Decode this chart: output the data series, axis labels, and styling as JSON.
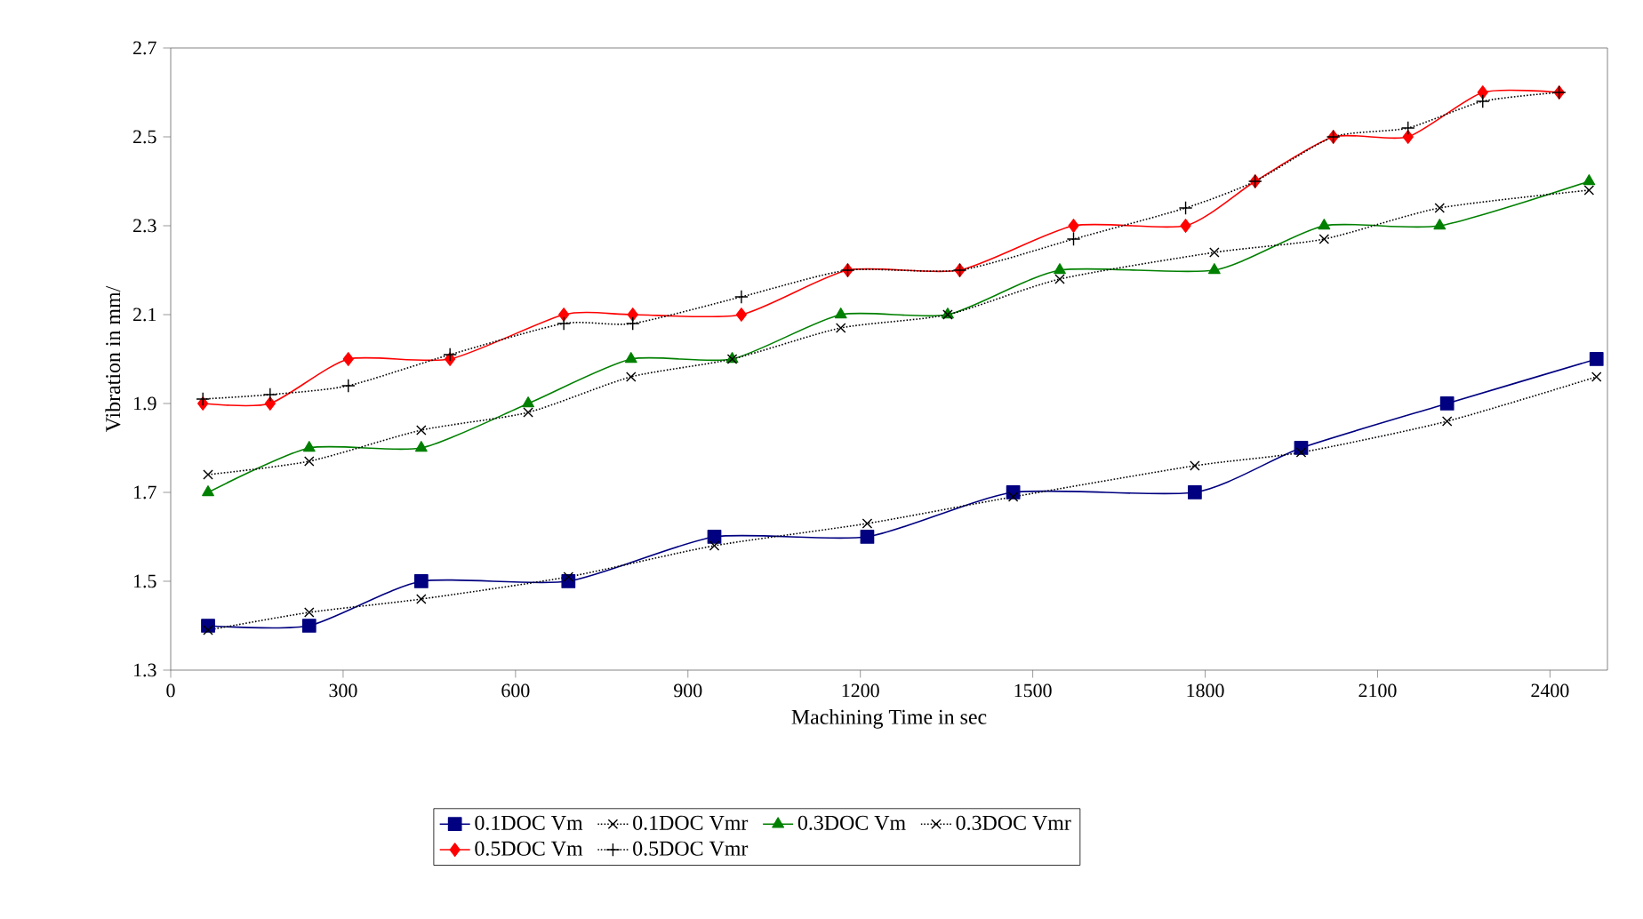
{
  "chart_data": {
    "type": "line",
    "xlabel": "Machining Time in sec",
    "ylabel": "Vibration in mm/",
    "xlim": [
      0,
      2500
    ],
    "ylim": [
      1.3,
      2.7
    ],
    "xticks": [
      0,
      300,
      600,
      900,
      1200,
      1500,
      1800,
      2100,
      2400
    ],
    "yticks": [
      1.3,
      1.5,
      1.7,
      1.9,
      2.1,
      2.3,
      2.5,
      2.7
    ],
    "grid": false,
    "legend": "bottom",
    "line_style": "solid",
    "series": [
      {
        "name": "0.1DOC Vm",
        "color": "#000080",
        "marker": "square",
        "x": [
          65,
          241,
          436,
          692,
          946,
          1212,
          1466,
          1782,
          1967,
          2221,
          2481
        ],
        "values": [
          1.4,
          1.4,
          1.5,
          1.5,
          1.6,
          1.6,
          1.7,
          1.7,
          1.8,
          1.9,
          2.0
        ]
      },
      {
        "name": "0.1DOC Vmr",
        "color": "#000000",
        "marker": "cross",
        "line_style": "dotted",
        "x": [
          65,
          241,
          436,
          692,
          946,
          1212,
          1466,
          1782,
          1967,
          2221,
          2481
        ],
        "values": [
          1.39,
          1.43,
          1.46,
          1.51,
          1.58,
          1.63,
          1.69,
          1.76,
          1.79,
          1.86,
          1.96
        ]
      },
      {
        "name": "0.3DOC Vm",
        "color": "#008000",
        "marker": "triangle",
        "x": [
          65,
          241,
          436,
          622,
          801,
          977,
          1166,
          1352,
          1547,
          1816,
          2007,
          2208,
          2468
        ],
        "values": [
          1.7,
          1.8,
          1.8,
          1.9,
          2.0,
          2.0,
          2.1,
          2.1,
          2.2,
          2.2,
          2.3,
          2.3,
          2.4
        ]
      },
      {
        "name": "0.3DOC Vmr",
        "color": "#000000",
        "marker": "cross",
        "line_style": "dotted",
        "x": [
          65,
          241,
          436,
          622,
          801,
          977,
          1166,
          1352,
          1547,
          1816,
          2007,
          2208,
          2468
        ],
        "values": [
          1.74,
          1.77,
          1.84,
          1.88,
          1.96,
          2.0,
          2.07,
          2.1,
          2.18,
          2.24,
          2.27,
          2.34,
          2.38
        ]
      },
      {
        "name": "0.5DOC Vm",
        "color": "#ff0000",
        "marker": "diamond",
        "x": [
          56,
          173,
          309,
          486,
          684,
          804,
          993,
          1178,
          1373,
          1571,
          1766,
          1887,
          2023,
          2153,
          2283,
          2416
        ],
        "values": [
          1.9,
          1.9,
          2.0,
          2.0,
          2.1,
          2.1,
          2.1,
          2.2,
          2.2,
          2.3,
          2.3,
          2.4,
          2.5,
          2.5,
          2.6,
          2.6
        ]
      },
      {
        "name": "0.5DOC Vmr",
        "color": "#000000",
        "marker": "plus",
        "line_style": "dotted",
        "x": [
          56,
          173,
          309,
          486,
          684,
          804,
          993,
          1178,
          1373,
          1571,
          1766,
          1887,
          2023,
          2153,
          2283,
          2416
        ],
        "values": [
          1.91,
          1.92,
          1.94,
          2.01,
          2.08,
          2.08,
          2.14,
          2.2,
          2.2,
          2.27,
          2.34,
          2.4,
          2.5,
          2.52,
          2.58,
          2.6
        ]
      }
    ]
  }
}
